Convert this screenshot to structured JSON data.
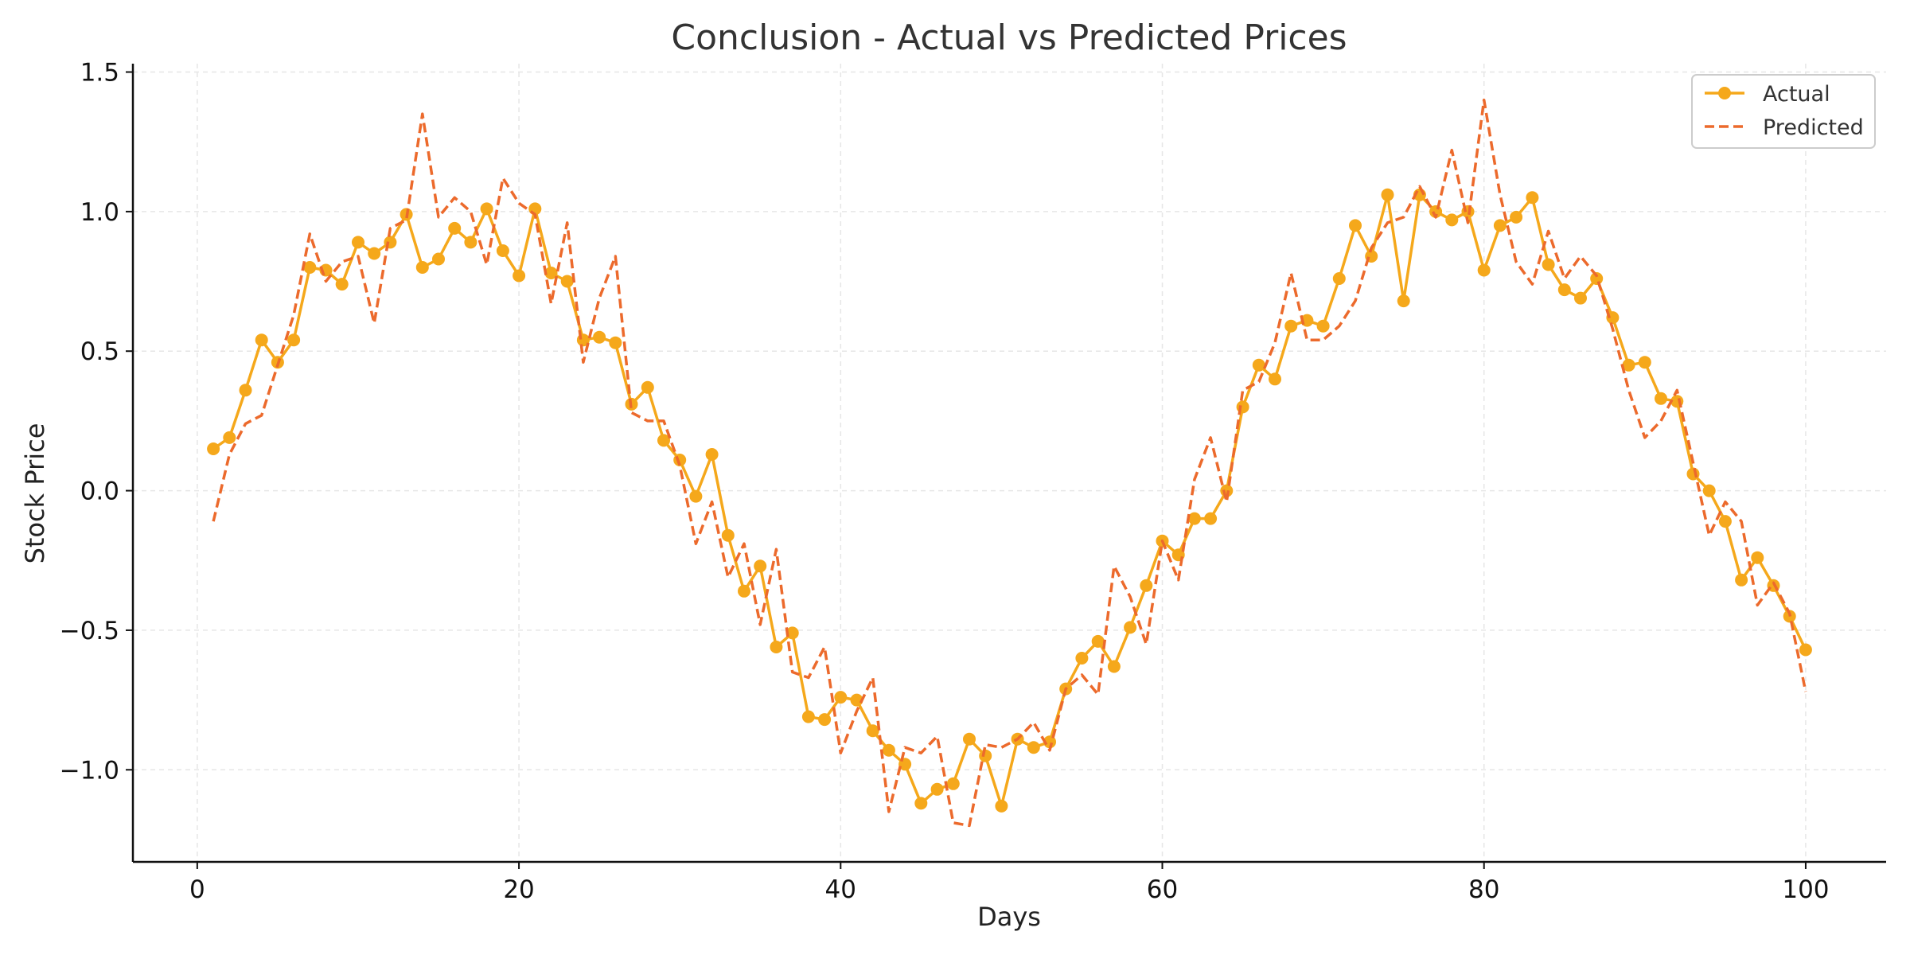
{
  "chart_data": {
    "type": "line",
    "title": "Conclusion - Actual vs Predicted Prices",
    "xlabel": "Days",
    "ylabel": "Stock Price",
    "xlim": [
      -4,
      105
    ],
    "ylim": [
      -1.33,
      1.53
    ],
    "xticks": [
      0,
      20,
      40,
      60,
      80,
      100
    ],
    "yticks": [
      -1.0,
      -0.5,
      0.0,
      0.5,
      1.0,
      1.5
    ],
    "ytick_labels": [
      "−1.0",
      "−0.5",
      "0.0",
      "0.5",
      "1.0",
      "1.5"
    ],
    "grid": true,
    "legend_position": "top-right",
    "x": [
      1,
      2,
      3,
      4,
      5,
      6,
      7,
      8,
      9,
      10,
      11,
      12,
      13,
      14,
      15,
      16,
      17,
      18,
      19,
      20,
      21,
      22,
      23,
      24,
      25,
      26,
      27,
      28,
      29,
      30,
      31,
      32,
      33,
      34,
      35,
      36,
      37,
      38,
      39,
      40,
      41,
      42,
      43,
      44,
      45,
      46,
      47,
      48,
      49,
      50,
      51,
      52,
      53,
      54,
      55,
      56,
      57,
      58,
      59,
      60,
      61,
      62,
      63,
      64,
      65,
      66,
      67,
      68,
      69,
      70,
      71,
      72,
      73,
      74,
      75,
      76,
      77,
      78,
      79,
      80,
      81,
      82,
      83,
      84,
      85,
      86,
      87,
      88,
      89,
      90,
      91,
      92,
      93,
      94,
      95,
      96,
      97,
      98,
      99,
      100
    ],
    "series": [
      {
        "name": "Actual",
        "color": "#F5A81B",
        "style": "solid",
        "marker": "circle",
        "values": [
          0.15,
          0.19,
          0.36,
          0.54,
          0.46,
          0.54,
          0.8,
          0.79,
          0.74,
          0.89,
          0.85,
          0.89,
          0.99,
          0.8,
          0.83,
          0.94,
          0.89,
          1.01,
          0.86,
          0.77,
          1.01,
          0.78,
          0.75,
          0.54,
          0.55,
          0.53,
          0.31,
          0.37,
          0.18,
          0.11,
          -0.02,
          0.13,
          -0.16,
          -0.36,
          -0.27,
          -0.56,
          -0.51,
          -0.81,
          -0.82,
          -0.74,
          -0.75,
          -0.86,
          -0.93,
          -0.98,
          -1.12,
          -1.07,
          -1.05,
          -0.89,
          -0.95,
          -1.13,
          -0.89,
          -0.92,
          -0.9,
          -0.71,
          -0.6,
          -0.54,
          -0.63,
          -0.49,
          -0.34,
          -0.18,
          -0.23,
          -0.1,
          -0.1,
          0.0,
          0.3,
          0.45,
          0.4,
          0.59,
          0.61,
          0.59,
          0.76,
          0.95,
          0.84,
          1.06,
          0.68,
          1.06,
          1.0,
          0.97,
          1.0,
          0.79,
          0.95,
          0.98,
          1.05,
          0.81,
          0.72,
          0.69,
          0.76,
          0.62,
          0.45,
          0.46,
          0.33,
          0.32,
          0.06,
          0.0,
          -0.11,
          -0.32,
          -0.24,
          -0.34,
          -0.45,
          -0.57
        ]
      },
      {
        "name": "Predicted",
        "color": "#EC6A2C",
        "style": "dashed",
        "marker": "none",
        "values": [
          -0.11,
          0.13,
          0.24,
          0.27,
          0.45,
          0.63,
          0.92,
          0.75,
          0.82,
          0.84,
          0.6,
          0.94,
          0.97,
          1.35,
          0.98,
          1.05,
          1.0,
          0.81,
          1.12,
          1.03,
          0.99,
          0.67,
          0.96,
          0.46,
          0.69,
          0.84,
          0.28,
          0.25,
          0.25,
          0.09,
          -0.19,
          -0.04,
          -0.31,
          -0.19,
          -0.48,
          -0.21,
          -0.65,
          -0.67,
          -0.56,
          -0.94,
          -0.79,
          -0.67,
          -1.15,
          -0.92,
          -0.94,
          -0.88,
          -1.19,
          -1.2,
          -0.91,
          -0.92,
          -0.89,
          -0.83,
          -0.93,
          -0.71,
          -0.66,
          -0.73,
          -0.27,
          -0.38,
          -0.55,
          -0.18,
          -0.32,
          0.04,
          0.19,
          -0.04,
          0.36,
          0.39,
          0.53,
          0.78,
          0.54,
          0.54,
          0.59,
          0.68,
          0.87,
          0.96,
          0.98,
          1.09,
          0.98,
          1.22,
          0.96,
          1.4,
          1.06,
          0.82,
          0.74,
          0.93,
          0.76,
          0.84,
          0.77,
          0.58,
          0.36,
          0.19,
          0.25,
          0.36,
          0.1,
          -0.16,
          -0.04,
          -0.11,
          -0.41,
          -0.33,
          -0.44,
          -0.72
        ]
      }
    ]
  }
}
